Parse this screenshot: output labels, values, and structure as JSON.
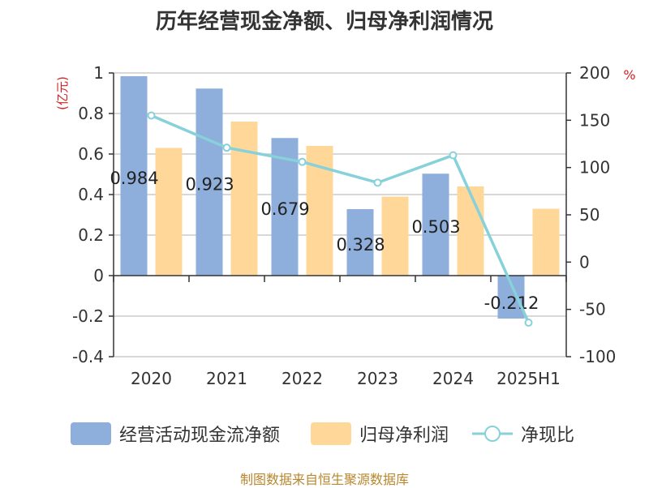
{
  "title": "历年经营现金净额、归母净利润情况",
  "source": "制图数据来自恒生聚源数据库",
  "chart_data": {
    "type": "bar",
    "categories": [
      "2020",
      "2021",
      "2022",
      "2023",
      "2024",
      "2025H1"
    ],
    "left_axis": {
      "unit": "(亿元)",
      "ylim": [
        -0.4,
        1
      ],
      "ticks": [
        "1",
        "0.8",
        "0.6",
        "0.4",
        "0.2",
        "0",
        "-0.2",
        "-0.4"
      ],
      "tick_values": [
        1,
        0.8,
        0.6,
        0.4,
        0.2,
        0,
        -0.2,
        -0.4
      ]
    },
    "right_axis": {
      "unit": "%",
      "ylim": [
        -100,
        200
      ],
      "ticks": [
        "200",
        "150",
        "100",
        "50",
        "0",
        "-50",
        "-100"
      ],
      "tick_values": [
        200,
        150,
        100,
        50,
        0,
        -50,
        -100
      ]
    },
    "series": [
      {
        "name": "经营活动现金流净额",
        "kind": "bar",
        "axis": "left",
        "color": "#8eaedb",
        "values": [
          0.984,
          0.923,
          0.679,
          0.328,
          0.503,
          -0.212
        ],
        "labels": [
          "0.984",
          "0.923",
          "0.679",
          "0.328",
          "0.503",
          "-0.212"
        ]
      },
      {
        "name": "归母净利润",
        "kind": "bar",
        "axis": "left",
        "color": "#ffd899",
        "values": [
          0.63,
          0.76,
          0.64,
          0.39,
          0.44,
          0.33
        ]
      },
      {
        "name": "净现比",
        "kind": "line",
        "axis": "right",
        "color": "#86d1da",
        "values": [
          155,
          121,
          106,
          84,
          113,
          -64
        ]
      }
    ],
    "grid": true,
    "legend_position": "bottom"
  }
}
